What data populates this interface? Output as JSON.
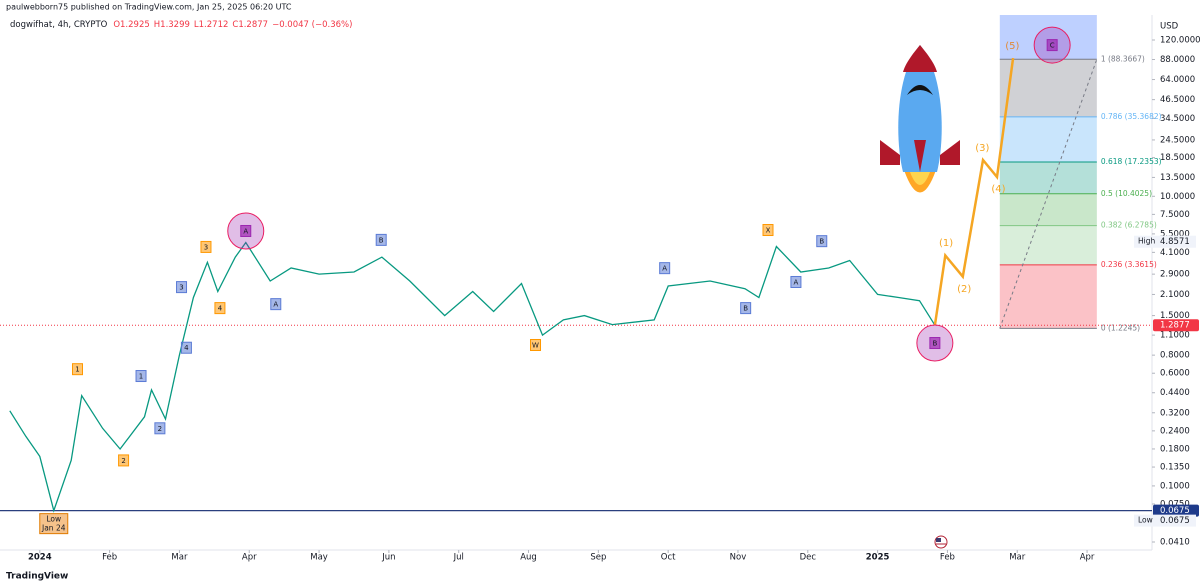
{
  "header": {
    "publisher": "paulwebborn75 published on TradingView.com, Jan 25, 2025 06:20 UTC",
    "symbol": "dogwifhat, 4h, CRYPTO",
    "quote": [
      "O1.2925",
      "H1.3299",
      "L1.2712",
      "C1.2877",
      "−0.0047 (−0.36%)"
    ]
  },
  "chart_data": {
    "type": "line",
    "currency": "USD",
    "color": "#089981",
    "log_scale": true,
    "grid": false,
    "x": [
      -0.43,
      -0.2,
      0.0,
      0.2,
      0.45,
      0.6,
      0.9,
      1.15,
      1.5,
      1.6,
      1.8,
      2.0,
      2.2,
      2.4,
      2.55,
      2.8,
      2.95,
      3.3,
      3.6,
      4.0,
      4.5,
      4.9,
      5.3,
      5.8,
      6.2,
      6.5,
      6.9,
      7.2,
      7.5,
      7.8,
      8.2,
      8.8,
      9.0,
      9.6,
      10.1,
      10.3,
      10.55,
      10.9,
      11.3,
      11.6,
      12.0,
      12.3,
      12.6,
      12.82
    ],
    "values": [
      0.33,
      0.22,
      0.16,
      0.0675,
      0.15,
      0.42,
      0.25,
      0.18,
      0.3,
      0.46,
      0.29,
      0.8,
      2.0,
      3.5,
      2.2,
      3.8,
      4.8,
      2.6,
      3.2,
      2.9,
      3.0,
      3.8,
      2.6,
      1.5,
      2.2,
      1.6,
      2.5,
      1.1,
      1.4,
      1.5,
      1.3,
      1.4,
      2.4,
      2.6,
      2.3,
      2.0,
      4.5,
      3.0,
      3.2,
      3.6,
      2.1,
      2.0,
      1.9,
      1.2877
    ],
    "projection": {
      "color": "#f5a623",
      "x": [
        12.82,
        12.97,
        13.22,
        13.51,
        13.71,
        13.94
      ],
      "values": [
        1.2877,
        3.9,
        2.79,
        17.8,
        13.6,
        90
      ]
    },
    "xlim": [
      -0.57,
      15.93
    ],
    "xticks": [
      {
        "value": 0,
        "label": "2024"
      },
      {
        "value": 1,
        "label": "Feb"
      },
      {
        "value": 2,
        "label": "Mar"
      },
      {
        "value": 3,
        "label": "Apr"
      },
      {
        "value": 4,
        "label": "May"
      },
      {
        "value": 5,
        "label": "Jun"
      },
      {
        "value": 6,
        "label": "Jul"
      },
      {
        "value": 7,
        "label": "Aug"
      },
      {
        "value": 8,
        "label": "Sep"
      },
      {
        "value": 9,
        "label": "Oct"
      },
      {
        "value": 10,
        "label": "Nov"
      },
      {
        "value": 11,
        "label": "Dec"
      },
      {
        "value": 12,
        "label": "2025"
      },
      {
        "value": 13,
        "label": "Feb"
      },
      {
        "value": 14,
        "label": "Mar"
      },
      {
        "value": 15,
        "label": "Apr"
      }
    ],
    "ylim": [
      0.0361,
      178.6
    ],
    "yticks": [
      {
        "value": 120,
        "label": "120.0000"
      },
      {
        "value": 88,
        "label": "88.0000"
      },
      {
        "value": 64,
        "label": "64.0000"
      },
      {
        "value": 46.5,
        "label": "46.5000"
      },
      {
        "value": 34.5,
        "label": "34.5000"
      },
      {
        "value": 24.5,
        "label": "24.5000"
      },
      {
        "value": 18.5,
        "label": "18.5000"
      },
      {
        "value": 13.5,
        "label": "13.5000"
      },
      {
        "value": 10,
        "label": "10.0000"
      },
      {
        "value": 7.5,
        "label": "7.5000"
      },
      {
        "value": 5.5,
        "label": "5.5000"
      },
      {
        "value": 4.1,
        "label": "4.1000"
      },
      {
        "value": 2.9,
        "label": "2.9000"
      },
      {
        "value": 2.1,
        "label": "2.1000"
      },
      {
        "value": 1.5,
        "label": "1.5000"
      },
      {
        "value": 1.1,
        "label": "1.1000"
      },
      {
        "value": 0.8,
        "label": "0.8000"
      },
      {
        "value": 0.6,
        "label": "0.6000"
      },
      {
        "value": 0.44,
        "label": "0.4400"
      },
      {
        "value": 0.32,
        "label": "0.3200"
      },
      {
        "value": 0.24,
        "label": "0.2400"
      },
      {
        "value": 0.18,
        "label": "0.1800"
      },
      {
        "value": 0.135,
        "label": "0.1350"
      },
      {
        "value": 0.1,
        "label": "0.1000"
      },
      {
        "value": 0.075,
        "label": "0.0750"
      },
      {
        "value": 0.041,
        "label": "0.0410"
      }
    ],
    "fib": {
      "x_range": [
        13.75,
        15.14
      ],
      "levels": [
        {
          "label": "0 (1.2245)",
          "price": 1.2245,
          "color": "#787b86",
          "zone": "rgba(242,54,69,0.3)"
        },
        {
          "label": "0.236 (3.3615)",
          "price": 3.3615,
          "color": "#f23645",
          "zone": "rgba(129,199,132,0.3)"
        },
        {
          "label": "0.382 (6.2785)",
          "price": 6.2785,
          "color": "#81c784",
          "zone": "rgba(76,175,80,0.3)"
        },
        {
          "label": "0.5 (10.4025)",
          "price": 10.4025,
          "color": "#4caf50",
          "zone": "rgba(8,153,129,0.3)"
        },
        {
          "label": "0.618 (17.2353)",
          "price": 17.2353,
          "color": "#089981",
          "zone": "rgba(100,181,246,0.35)"
        },
        {
          "label": "0.786 (35.3682)",
          "price": 35.3682,
          "color": "#64b5f6",
          "zone": "rgba(120,123,134,0.35)"
        },
        {
          "label": "1 (88.3667)",
          "price": 88.3667,
          "color": "#787b86",
          "zone": "rgba(41,98,255,0.3)"
        }
      ]
    },
    "last_price": 1.2877,
    "low": {
      "value": 0.0675,
      "label": "Low",
      "date": "Jan 24",
      "x": 0.2
    },
    "high": {
      "value": 4.8571,
      "label": "High"
    },
    "annotations": [
      {
        "text": "1",
        "x": 0.54,
        "y": 0.64,
        "color": "#ff9800"
      },
      {
        "text": "2",
        "x": 1.2,
        "y": 0.15,
        "color": "#ff9800"
      },
      {
        "text": "3",
        "x": 2.38,
        "y": 4.47,
        "color": "#ff9800"
      },
      {
        "text": "4",
        "x": 2.58,
        "y": 1.69,
        "color": "#ff9800"
      },
      {
        "text": "1",
        "x": 1.45,
        "y": 0.574,
        "color": "#5b7bd5"
      },
      {
        "text": "2",
        "x": 1.72,
        "y": 0.25,
        "color": "#5b7bd5"
      },
      {
        "text": "3",
        "x": 2.03,
        "y": 2.36,
        "color": "#5b7bd5"
      },
      {
        "text": "4",
        "x": 2.1,
        "y": 0.9,
        "color": "#5b7bd5"
      },
      {
        "text": "A",
        "x": 3.38,
        "y": 1.8,
        "color": "#5b7bd5"
      },
      {
        "text": "B",
        "x": 4.89,
        "y": 5.0,
        "color": "#5b7bd5"
      },
      {
        "text": "W",
        "x": 7.1,
        "y": 0.94,
        "color": "#ff9800"
      },
      {
        "text": "A",
        "x": 8.95,
        "y": 3.19,
        "color": "#5b7bd5"
      },
      {
        "text": "B",
        "x": 10.11,
        "y": 1.69,
        "color": "#5b7bd5"
      },
      {
        "text": "X",
        "x": 10.43,
        "y": 5.85,
        "color": "#ff9800"
      },
      {
        "text": "A",
        "x": 10.83,
        "y": 2.56,
        "color": "#5b7bd5"
      },
      {
        "text": "B",
        "x": 11.2,
        "y": 4.9,
        "color": "#5b7bd5"
      },
      {
        "text": "A",
        "x": 2.95,
        "y": 5.76,
        "color": "#9c27b0",
        "circled": true
      },
      {
        "text": "B",
        "x": 12.82,
        "y": 0.97,
        "color": "#9c27b0",
        "circled": true
      },
      {
        "text": "C",
        "x": 14.5,
        "y": 110.7,
        "color": "#9c27b0",
        "circled": true
      },
      {
        "text": "(1)",
        "x": 12.98,
        "y": 4.75,
        "color": "#f5a623",
        "plain": true
      },
      {
        "text": "(2)",
        "x": 13.24,
        "y": 2.29,
        "color": "#f5a623",
        "plain": true
      },
      {
        "text": "(3)",
        "x": 13.5,
        "y": 21.5,
        "color": "#f5a623",
        "plain": true
      },
      {
        "text": "(4)",
        "x": 13.73,
        "y": 11.2,
        "color": "#f5a623",
        "plain": true
      },
      {
        "text": "(5)",
        "x": 13.93,
        "y": 109,
        "color": "#e08a3a",
        "plain": true
      }
    ]
  },
  "footer": "TradingView"
}
